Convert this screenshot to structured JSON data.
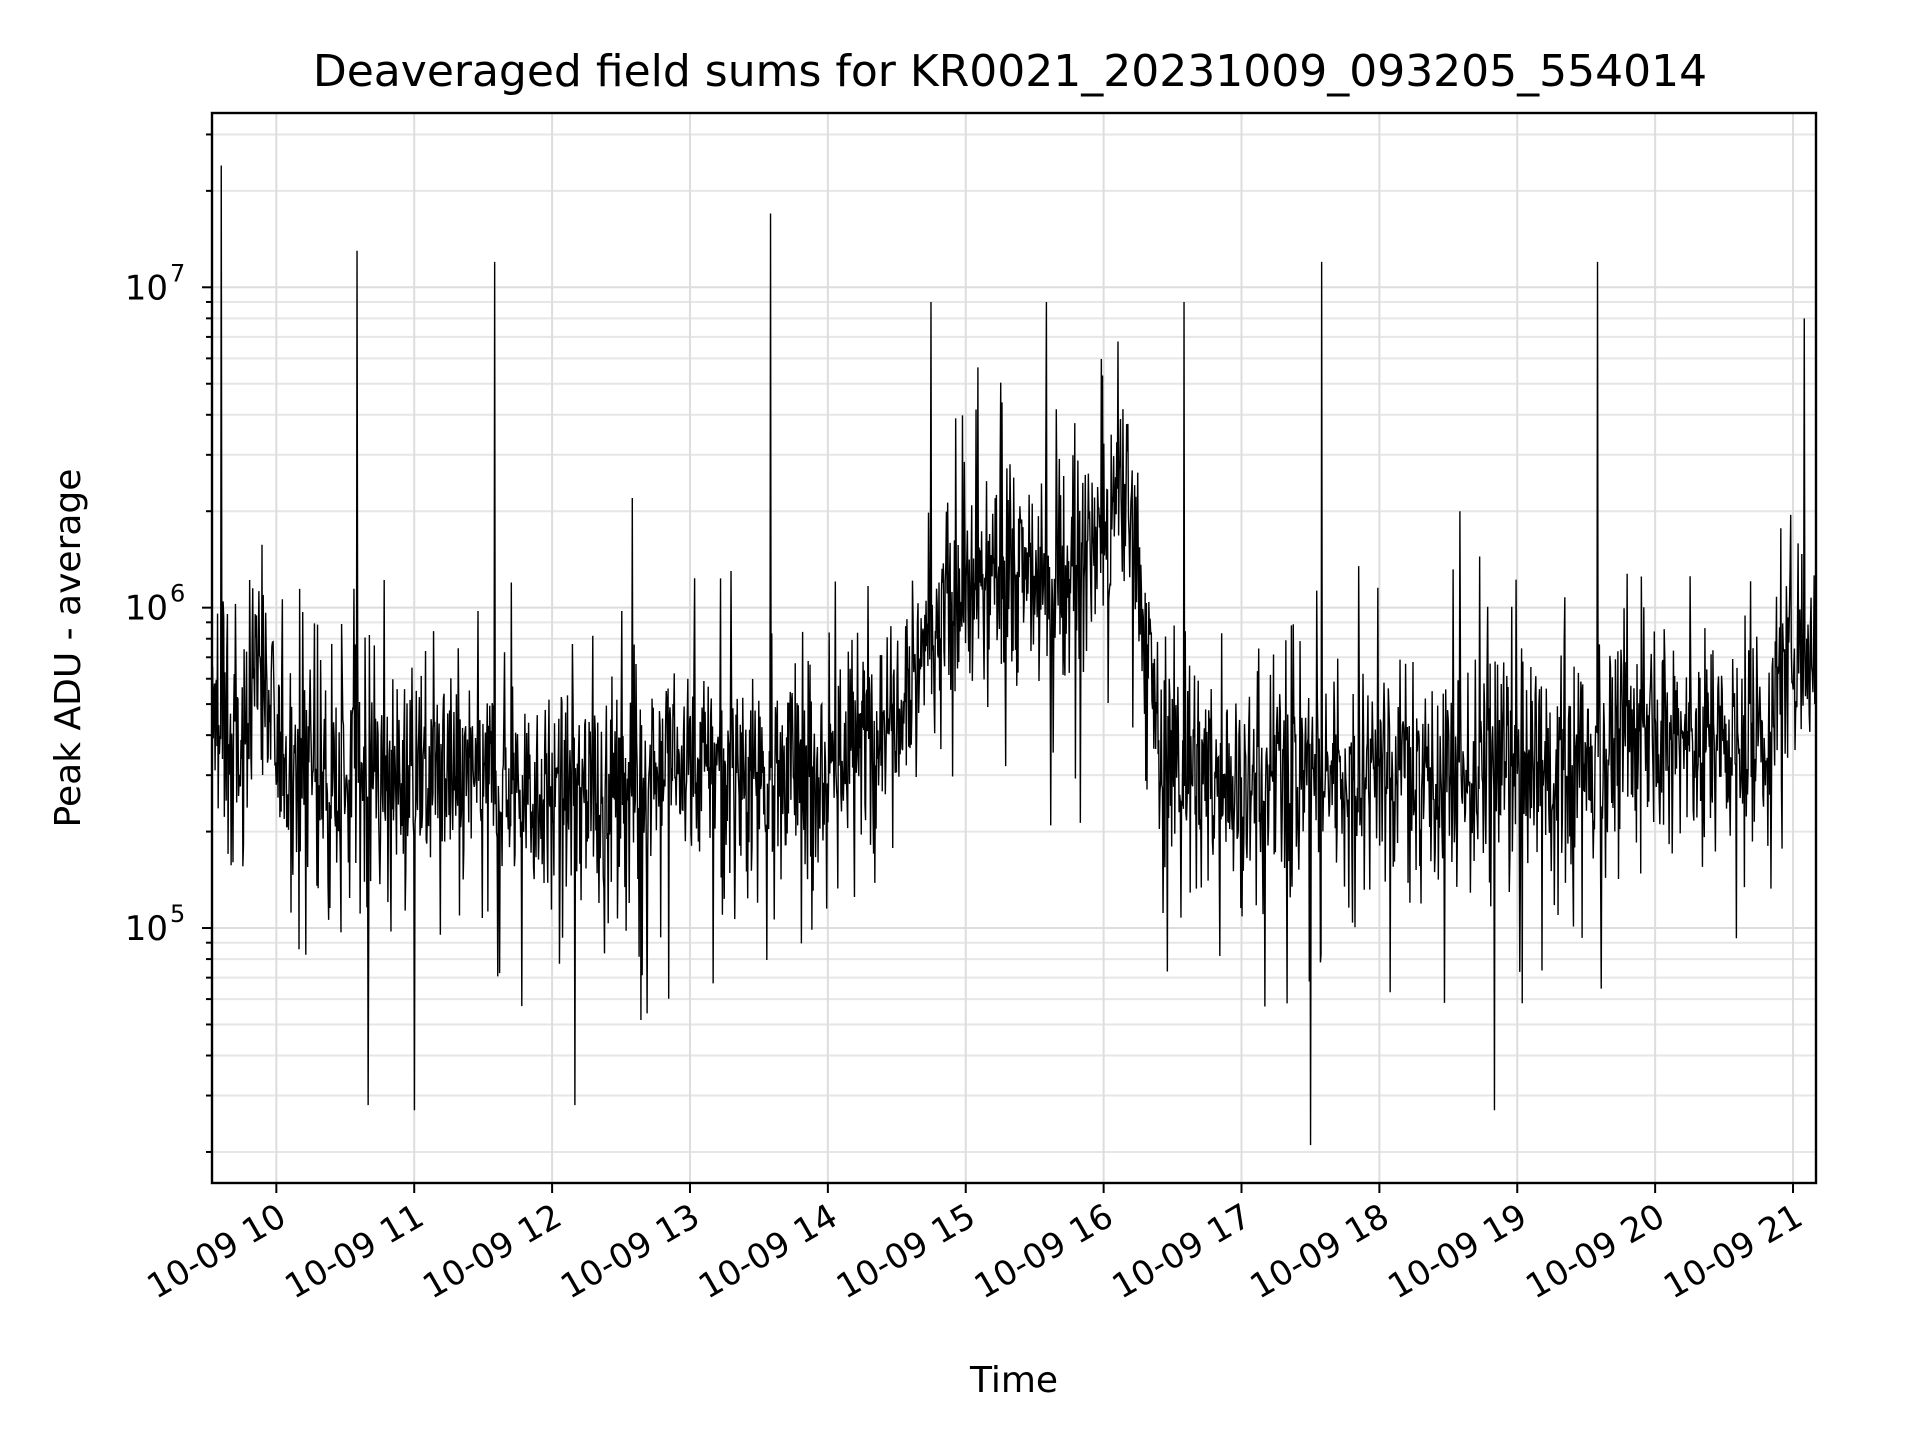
{
  "chart_data": {
    "type": "line",
    "title": "Deaveraged field sums for KR0021_20231009_093205_554014",
    "xlabel": "Time",
    "ylabel": "Peak ADU - average",
    "yscale": "log",
    "ylim": [
      16000,
      35000000
    ],
    "xlim": [
      "2023-10-09 09:32",
      "2023-10-09 21:10"
    ],
    "grid": true,
    "x_ticks": [
      {
        "value": "2023-10-09 10:00",
        "label": "10-09 10"
      },
      {
        "value": "2023-10-09 11:00",
        "label": "10-09 11"
      },
      {
        "value": "2023-10-09 12:00",
        "label": "10-09 12"
      },
      {
        "value": "2023-10-09 13:00",
        "label": "10-09 13"
      },
      {
        "value": "2023-10-09 14:00",
        "label": "10-09 14"
      },
      {
        "value": "2023-10-09 15:00",
        "label": "10-09 15"
      },
      {
        "value": "2023-10-09 16:00",
        "label": "10-09 16"
      },
      {
        "value": "2023-10-09 17:00",
        "label": "10-09 17"
      },
      {
        "value": "2023-10-09 18:00",
        "label": "10-09 18"
      },
      {
        "value": "2023-10-09 19:00",
        "label": "10-09 19"
      },
      {
        "value": "2023-10-09 20:00",
        "label": "10-09 20"
      },
      {
        "value": "2023-10-09 21:00",
        "label": "10-09 21"
      }
    ],
    "y_ticks": [
      {
        "value": 100000,
        "base": "10",
        "exp": "5"
      },
      {
        "value": 1000000,
        "base": "10",
        "exp": "6"
      },
      {
        "value": 10000000,
        "base": "10",
        "exp": "7"
      }
    ],
    "series": [
      {
        "color": "#000000",
        "baseline": [
          [
            "2023-10-09 09:32",
            450000
          ],
          [
            "2023-10-09 09:45",
            330000
          ],
          [
            "2023-10-09 09:52",
            800000
          ],
          [
            "2023-10-09 10:00",
            350000
          ],
          [
            "2023-10-09 10:30",
            290000
          ],
          [
            "2023-10-09 11:00",
            300000
          ],
          [
            "2023-10-09 11:30",
            300000
          ],
          [
            "2023-10-09 12:00",
            260000
          ],
          [
            "2023-10-09 12:30",
            280000
          ],
          [
            "2023-10-09 13:00",
            340000
          ],
          [
            "2023-10-09 13:30",
            310000
          ],
          [
            "2023-10-09 14:00",
            320000
          ],
          [
            "2023-10-09 14:20",
            420000
          ],
          [
            "2023-10-09 14:45",
            850000
          ],
          [
            "2023-10-09 15:15",
            1300000
          ],
          [
            "2023-10-09 15:45",
            1200000
          ],
          [
            "2023-10-09 16:10",
            2200000
          ],
          [
            "2023-10-09 16:18",
            900000
          ],
          [
            "2023-10-09 16:25",
            330000
          ],
          [
            "2023-10-09 17:00",
            280000
          ],
          [
            "2023-10-09 17:30",
            300000
          ],
          [
            "2023-10-09 18:00",
            330000
          ],
          [
            "2023-10-09 18:30",
            300000
          ],
          [
            "2023-10-09 19:00",
            300000
          ],
          [
            "2023-10-09 19:30",
            320000
          ],
          [
            "2023-10-09 20:00",
            420000
          ],
          [
            "2023-10-09 20:30",
            380000
          ],
          [
            "2023-10-09 20:50",
            400000
          ],
          [
            "2023-10-09 21:00",
            900000
          ],
          [
            "2023-10-09 21:10",
            700000
          ]
        ],
        "spikes": [
          [
            "2023-10-09 09:36",
            24000000
          ],
          [
            "2023-10-09 10:35",
            13000000
          ],
          [
            "2023-10-09 11:35",
            12000000
          ],
          [
            "2023-10-09 12:35",
            2200000
          ],
          [
            "2023-10-09 13:35",
            17000000
          ],
          [
            "2023-10-09 14:45",
            9000000
          ],
          [
            "2023-10-09 15:35",
            9000000
          ],
          [
            "2023-10-09 16:35",
            9000000
          ],
          [
            "2023-10-09 17:35",
            12000000
          ],
          [
            "2023-10-09 18:35",
            2000000
          ],
          [
            "2023-10-09 19:35",
            12000000
          ],
          [
            "2023-10-09 21:05",
            8000000
          ]
        ],
        "dips": [
          [
            "2023-10-09 10:40",
            28000
          ],
          [
            "2023-10-09 11:00",
            27000
          ],
          [
            "2023-10-09 12:10",
            28000
          ],
          [
            "2023-10-09 17:30",
            21000
          ],
          [
            "2023-10-09 18:50",
            27000
          ]
        ]
      }
    ]
  }
}
